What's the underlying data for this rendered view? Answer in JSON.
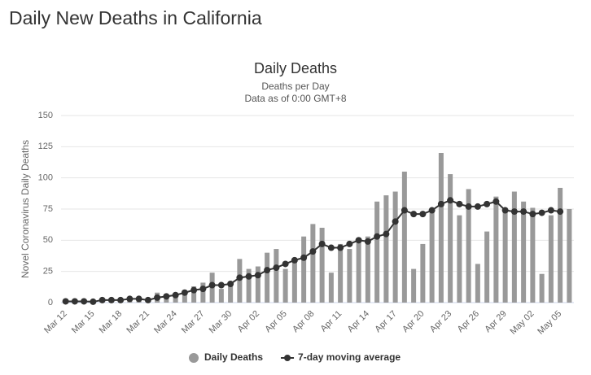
{
  "page_title": "Daily New Deaths in California",
  "chart_data": {
    "type": "bar",
    "title": "Daily Deaths",
    "subtitle": "Deaths per Day",
    "subtitle2": "Data as of 0:00 GMT+8",
    "y_label": "Novel Coronavirus Daily Deaths",
    "categories": [
      "Mar 12",
      null,
      null,
      "Mar 15",
      null,
      null,
      "Mar 18",
      null,
      null,
      "Mar 21",
      null,
      null,
      "Mar 24",
      null,
      null,
      "Mar 27",
      null,
      null,
      "Mar 30",
      null,
      null,
      "Apr 02",
      null,
      null,
      "Apr 05",
      null,
      null,
      "Apr 08",
      null,
      null,
      "Apr 11",
      null,
      null,
      "Apr 14",
      null,
      null,
      "Apr 17",
      null,
      null,
      "Apr 20",
      null,
      null,
      "Apr 23",
      null,
      null,
      "Apr 26",
      null,
      null,
      "Apr 29",
      null,
      null,
      "May 02",
      null,
      null,
      "May 05",
      null
    ],
    "series": [
      {
        "name": "Daily Deaths",
        "color": "#999999",
        "kind": "bar",
        "values": [
          1,
          0,
          1,
          0,
          2,
          2,
          3,
          2,
          3,
          2,
          8,
          6,
          8,
          10,
          13,
          16,
          24,
          11,
          14,
          35,
          27,
          29,
          40,
          43,
          27,
          33,
          53,
          63,
          60,
          24,
          47,
          43,
          52,
          53,
          81,
          86,
          89,
          105,
          27,
          47,
          74,
          120,
          103,
          70,
          91,
          31,
          57,
          85,
          76,
          89,
          81,
          76,
          23,
          70,
          92,
          75
        ]
      },
      {
        "name": "7-day moving average",
        "color": "#333333",
        "kind": "line",
        "values": [
          1,
          1,
          1,
          0.7,
          2,
          2,
          2,
          3,
          3,
          2,
          4,
          5,
          6,
          8,
          10,
          11,
          14,
          14,
          15,
          20,
          21,
          22,
          26,
          28,
          31,
          34,
          36,
          41,
          47,
          44,
          44,
          47,
          50,
          49,
          53,
          55,
          65,
          74,
          71,
          71,
          74,
          79,
          82,
          79,
          77,
          77,
          79,
          81,
          74,
          73,
          73,
          71,
          72,
          74,
          73,
          null
        ]
      }
    ],
    "ylim": [
      0,
      150
    ],
    "yticks": [
      0,
      25,
      50,
      75,
      100,
      125,
      150
    ],
    "grid": true,
    "legend": "bottom"
  }
}
